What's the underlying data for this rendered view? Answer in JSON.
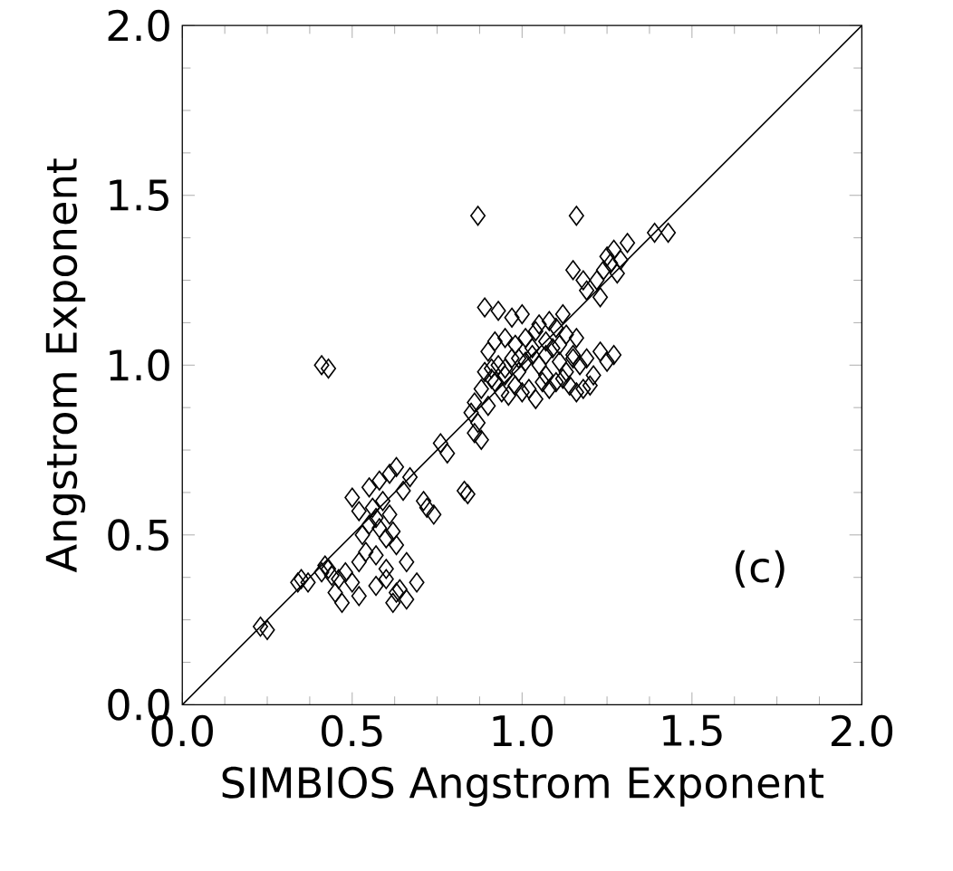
{
  "chart_data": {
    "type": "scatter",
    "xlabel": "SIMBIOS Angstrom Exponent",
    "ylabel": "Angstrom Exponent",
    "xlim": [
      0,
      2
    ],
    "ylim": [
      0,
      2
    ],
    "xticks": [
      {
        "value": 0,
        "label": "0.0"
      },
      0.5,
      {
        "value": 1,
        "label": "1.0"
      },
      1.5,
      {
        "value": 2,
        "label": "2.0"
      }
    ],
    "yticks": [
      {
        "value": 0,
        "label": "0.0"
      },
      0.5,
      {
        "value": 1,
        "label": "1.0"
      },
      1.5,
      {
        "value": 2,
        "label": "2.0"
      }
    ],
    "marker": "diamond",
    "annotations": [
      "(c)"
    ],
    "series": [
      {
        "color": "#000000",
        "x": [
          0.23,
          0.25,
          0.34,
          0.35,
          0.37,
          0.41,
          0.43,
          0.44,
          0.46,
          0.42,
          0.45,
          0.48,
          0.5,
          0.47,
          0.52,
          0.53,
          0.55,
          0.57,
          0.58,
          0.6,
          0.62,
          0.56,
          0.59,
          0.61,
          0.63,
          0.54,
          0.52,
          0.57,
          0.6,
          0.62,
          0.64,
          0.66,
          0.55,
          0.58,
          0.61,
          0.63,
          0.65,
          0.67,
          0.5,
          0.52,
          0.57,
          0.6,
          0.63,
          0.66,
          0.69,
          0.72,
          0.74,
          0.71,
          0.76,
          0.78,
          0.83,
          0.84,
          0.86,
          0.85,
          0.87,
          0.88,
          0.9,
          0.92,
          0.89,
          0.91,
          0.93,
          0.95,
          0.97,
          0.99,
          1.01,
          1.03,
          1.05,
          1.07,
          1.09,
          1.11,
          1.13,
          1.15,
          1.17,
          1.19,
          1.21,
          1.23,
          1.25,
          1.27,
          0.94,
          0.96,
          0.98,
          1.0,
          1.02,
          1.04,
          1.06,
          1.08,
          1.1,
          1.12,
          1.14,
          1.16,
          1.18,
          1.2,
          0.9,
          0.92,
          0.95,
          0.98,
          1.01,
          1.04,
          1.07,
          1.1,
          1.13,
          1.16,
          0.89,
          0.93,
          0.97,
          1.0,
          1.05,
          1.08,
          1.12,
          1.22,
          1.24,
          1.26,
          1.28,
          1.19,
          1.23,
          1.25,
          1.27,
          1.29,
          1.31,
          1.15,
          1.18,
          1.39,
          1.43,
          0.87,
          1.16,
          0.41,
          0.43,
          0.91,
          0.95,
          0.99,
          1.03,
          1.07,
          1.11,
          1.15,
          0.86,
          0.88
        ],
        "values": [
          0.23,
          0.22,
          0.36,
          0.37,
          0.36,
          0.39,
          0.4,
          0.38,
          0.37,
          0.41,
          0.33,
          0.39,
          0.36,
          0.3,
          0.42,
          0.5,
          0.53,
          0.55,
          0.52,
          0.49,
          0.51,
          0.58,
          0.6,
          0.56,
          0.47,
          0.45,
          0.32,
          0.35,
          0.37,
          0.3,
          0.34,
          0.42,
          0.64,
          0.66,
          0.68,
          0.7,
          0.63,
          0.67,
          0.61,
          0.57,
          0.44,
          0.4,
          0.33,
          0.31,
          0.36,
          0.58,
          0.56,
          0.6,
          0.77,
          0.74,
          0.63,
          0.62,
          0.89,
          0.86,
          0.83,
          0.93,
          0.88,
          0.95,
          0.98,
          0.99,
          1.0,
          0.97,
          1.02,
          0.98,
          1.01,
          1.03,
          1.0,
          0.97,
          1.05,
          1.01,
          0.98,
          1.03,
          1.0,
          1.02,
          0.97,
          1.04,
          1.01,
          1.03,
          0.92,
          0.91,
          0.94,
          0.92,
          0.93,
          0.9,
          0.95,
          0.93,
          0.95,
          0.96,
          0.94,
          0.92,
          0.93,
          0.94,
          1.04,
          1.07,
          1.08,
          1.06,
          1.08,
          1.1,
          1.07,
          1.11,
          1.09,
          1.08,
          1.17,
          1.16,
          1.14,
          1.15,
          1.12,
          1.13,
          1.15,
          1.25,
          1.28,
          1.3,
          1.27,
          1.22,
          1.2,
          1.32,
          1.34,
          1.31,
          1.36,
          1.28,
          1.25,
          1.39,
          1.39,
          1.44,
          1.44,
          1.0,
          0.99,
          0.96,
          0.99,
          1.02,
          1.05,
          1.03,
          1.06,
          1.02,
          0.8,
          0.78
        ]
      },
      {
        "type": "line",
        "marker": "none",
        "color": "#000000",
        "x": [
          0,
          2
        ],
        "values": [
          0,
          2
        ]
      }
    ]
  }
}
